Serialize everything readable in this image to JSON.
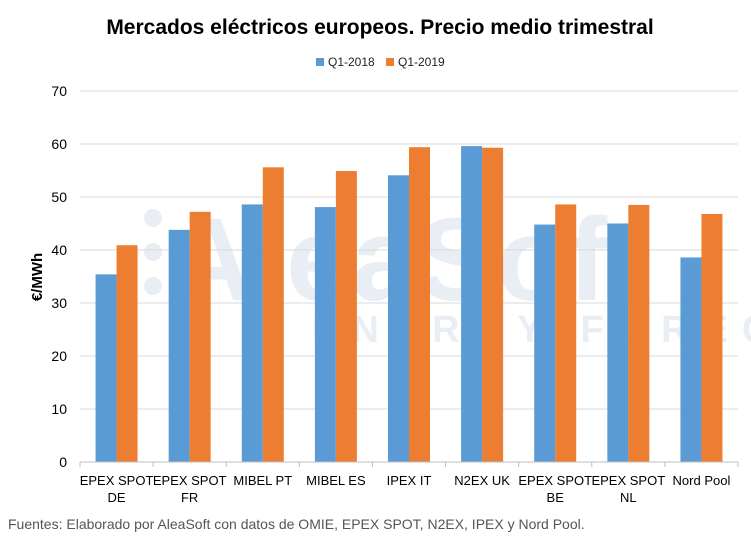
{
  "chart_data": {
    "type": "bar",
    "title": "Mercados eléctricos europeos. Precio medio trimestral",
    "ylabel": "€/MWh",
    "xlabel": "",
    "ylim": [
      0,
      70
    ],
    "yticks": [
      0,
      10,
      20,
      30,
      40,
      50,
      60,
      70
    ],
    "grid": true,
    "legend_position": "top-center",
    "categories": [
      [
        "EPEX SPOT",
        "DE"
      ],
      [
        "EPEX SPOT",
        "FR"
      ],
      [
        "MIBEL PT"
      ],
      [
        "MIBEL ES"
      ],
      [
        "IPEX IT"
      ],
      [
        "N2EX UK"
      ],
      [
        "EPEX SPOT",
        "BE"
      ],
      [
        "EPEX SPOT",
        "NL"
      ],
      [
        "Nord Pool"
      ]
    ],
    "series": [
      {
        "name": "Q1-2018",
        "color": "#5B9BD5",
        "values": [
          35.4,
          43.8,
          48.6,
          48.1,
          54.1,
          59.6,
          44.8,
          45.0,
          38.6
        ]
      },
      {
        "name": "Q1-2019",
        "color": "#ED7D31",
        "values": [
          40.9,
          47.2,
          55.6,
          54.9,
          59.4,
          59.3,
          48.6,
          48.5,
          46.8
        ]
      }
    ]
  },
  "watermark": {
    "main": "AleaSoft",
    "sub": "ENERGY FORECASTING"
  },
  "source": "Fuentes: Elaborado por AleaSoft con datos de OMIE, EPEX SPOT, N2EX, IPEX y Nord Pool."
}
